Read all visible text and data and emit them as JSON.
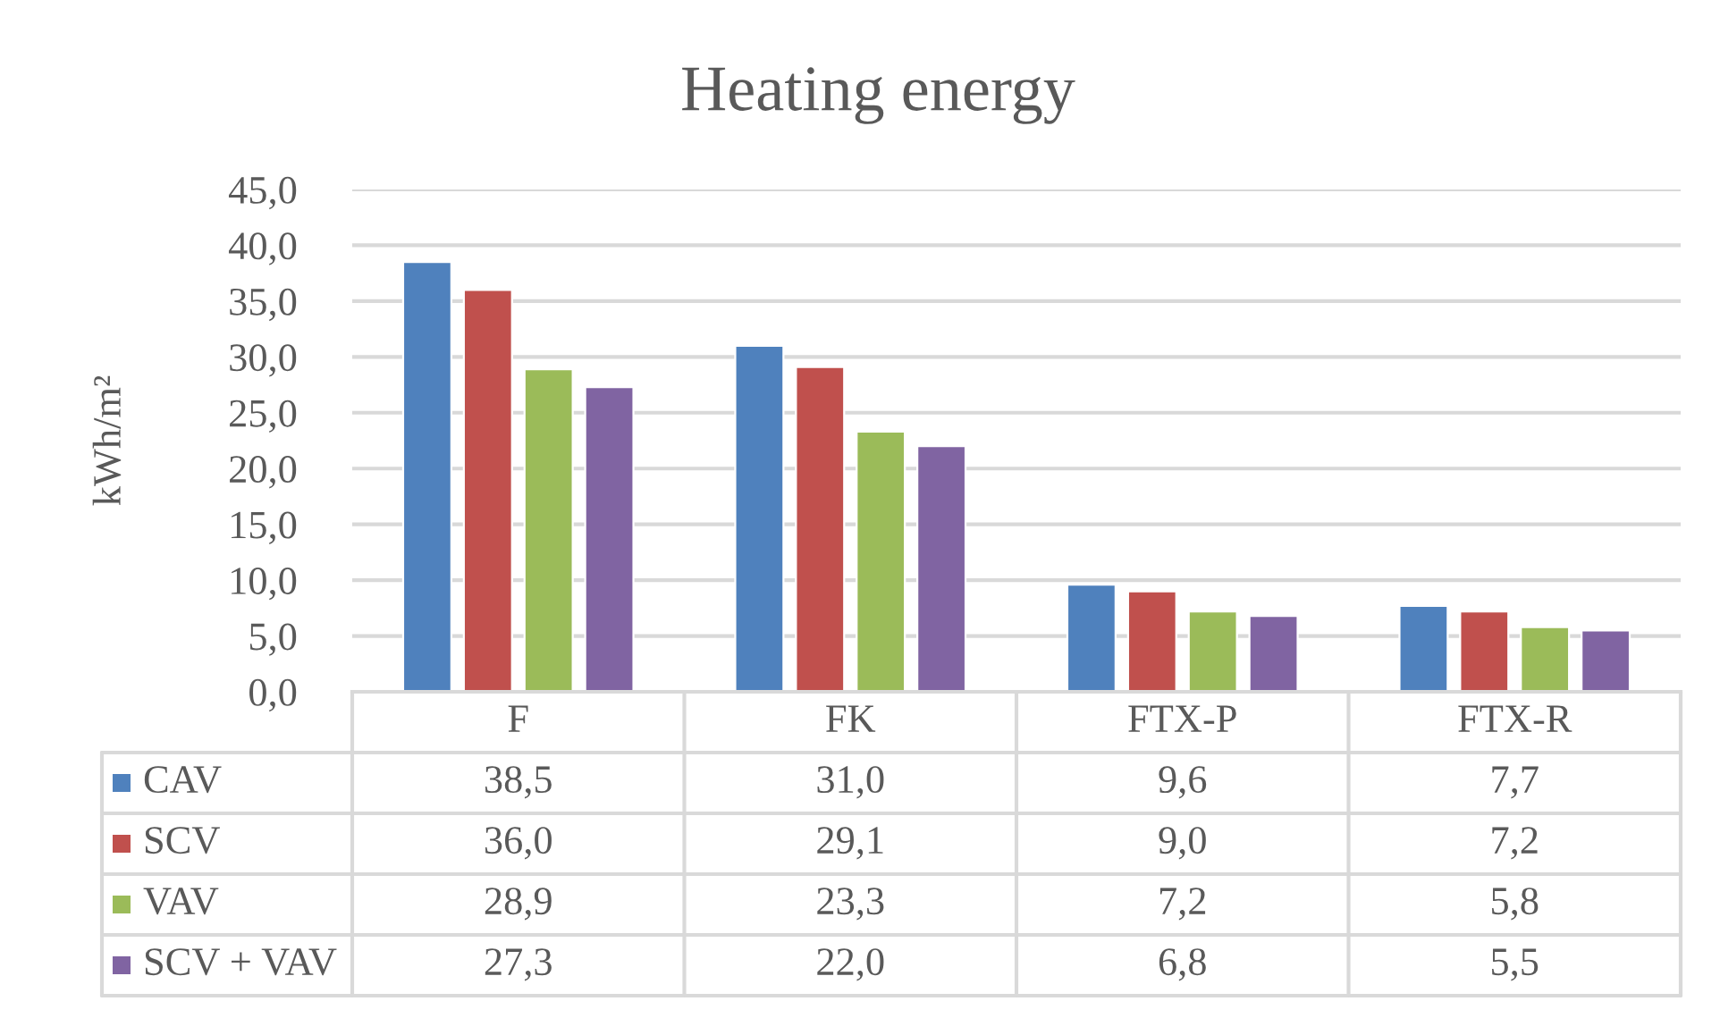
{
  "chart_data": {
    "type": "bar",
    "title": "Heating energy",
    "ylabel": "kWh/m²",
    "categories": [
      "F",
      "FK",
      "FTX-P",
      "FTX-R"
    ],
    "series": [
      {
        "name": "CAV",
        "color": "#4f81bd",
        "values": [
          38.5,
          31.0,
          9.6,
          7.7
        ],
        "value_labels": [
          "38,5",
          "31,0",
          "9,6",
          "7,7"
        ]
      },
      {
        "name": "SCV",
        "color": "#c0504d",
        "values": [
          36.0,
          29.1,
          9.0,
          7.2
        ],
        "value_labels": [
          "36,0",
          "29,1",
          "9,0",
          "7,2"
        ]
      },
      {
        "name": "VAV",
        "color": "#9bbb59",
        "values": [
          28.9,
          23.3,
          7.2,
          5.8
        ],
        "value_labels": [
          "28,9",
          "23,3",
          "7,2",
          "5,8"
        ]
      },
      {
        "name": "SCV + VAV",
        "color": "#8064a2",
        "values": [
          27.3,
          22.0,
          6.8,
          5.5
        ],
        "value_labels": [
          "27,3",
          "22,0",
          "6,8",
          "5,5"
        ]
      }
    ],
    "ylim": [
      0,
      45
    ],
    "yticks": [
      {
        "value": 0,
        "label": "0,0"
      },
      {
        "value": 5,
        "label": "5,0"
      },
      {
        "value": 10,
        "label": "10,0"
      },
      {
        "value": 15,
        "label": "15,0"
      },
      {
        "value": 20,
        "label": "20,0"
      },
      {
        "value": 25,
        "label": "25,0"
      },
      {
        "value": 30,
        "label": "30,0"
      },
      {
        "value": 35,
        "label": "35,0"
      },
      {
        "value": 40,
        "label": "40,0"
      },
      {
        "value": 45,
        "label": "45,0"
      }
    ],
    "grid": "y",
    "legend": "bottom left"
  }
}
